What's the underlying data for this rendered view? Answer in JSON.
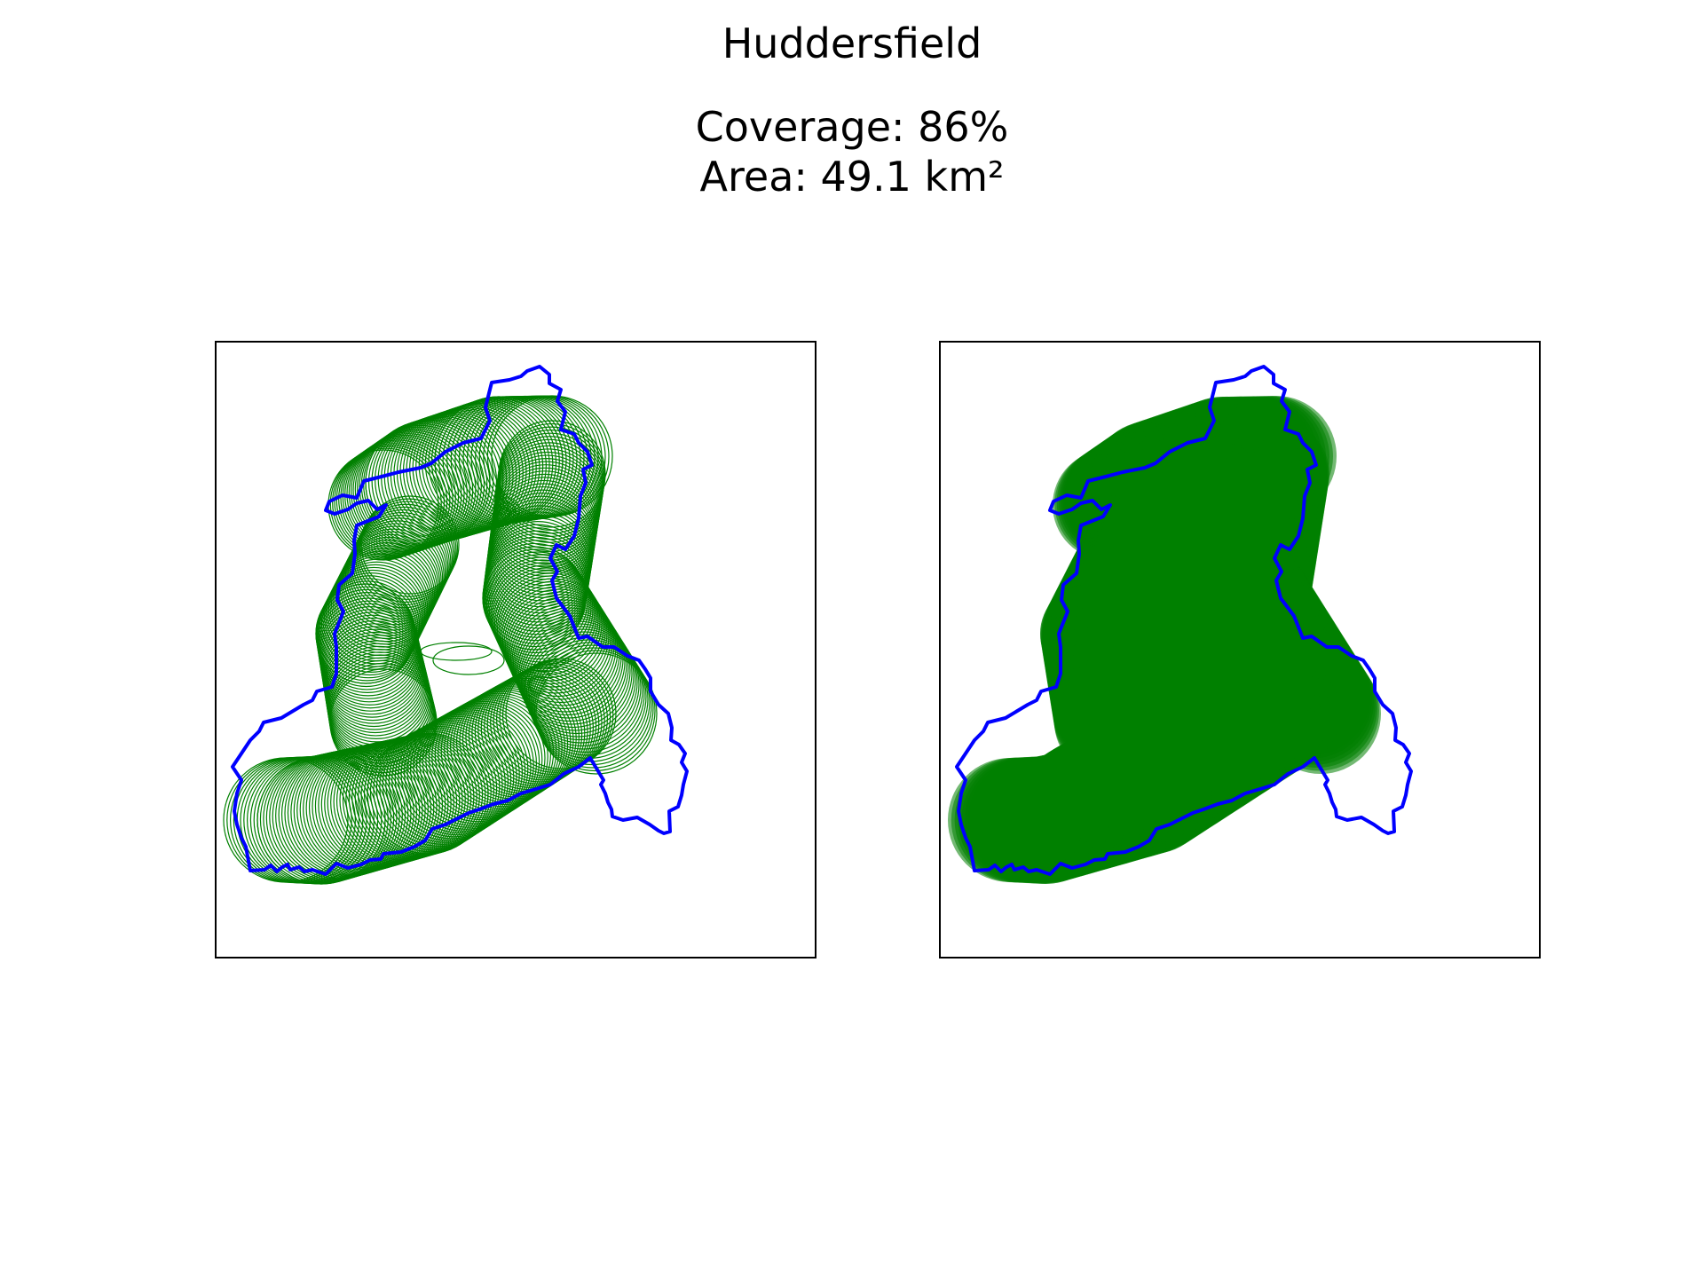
{
  "figure": {
    "title": "Huddersfield",
    "coverage_text": "Coverage: 86%",
    "area_text": "Area: 49.1 km²"
  },
  "style": {
    "boundary_color": "#0000ff",
    "coverage_color": "#008000",
    "background": "#ffffff"
  },
  "panels": [
    {
      "id": "left",
      "rendering": "outlined-circles"
    },
    {
      "id": "right",
      "rendering": "filled-circles"
    }
  ],
  "stats": {
    "coverage_percent": 86,
    "area_km2": 49.1
  }
}
